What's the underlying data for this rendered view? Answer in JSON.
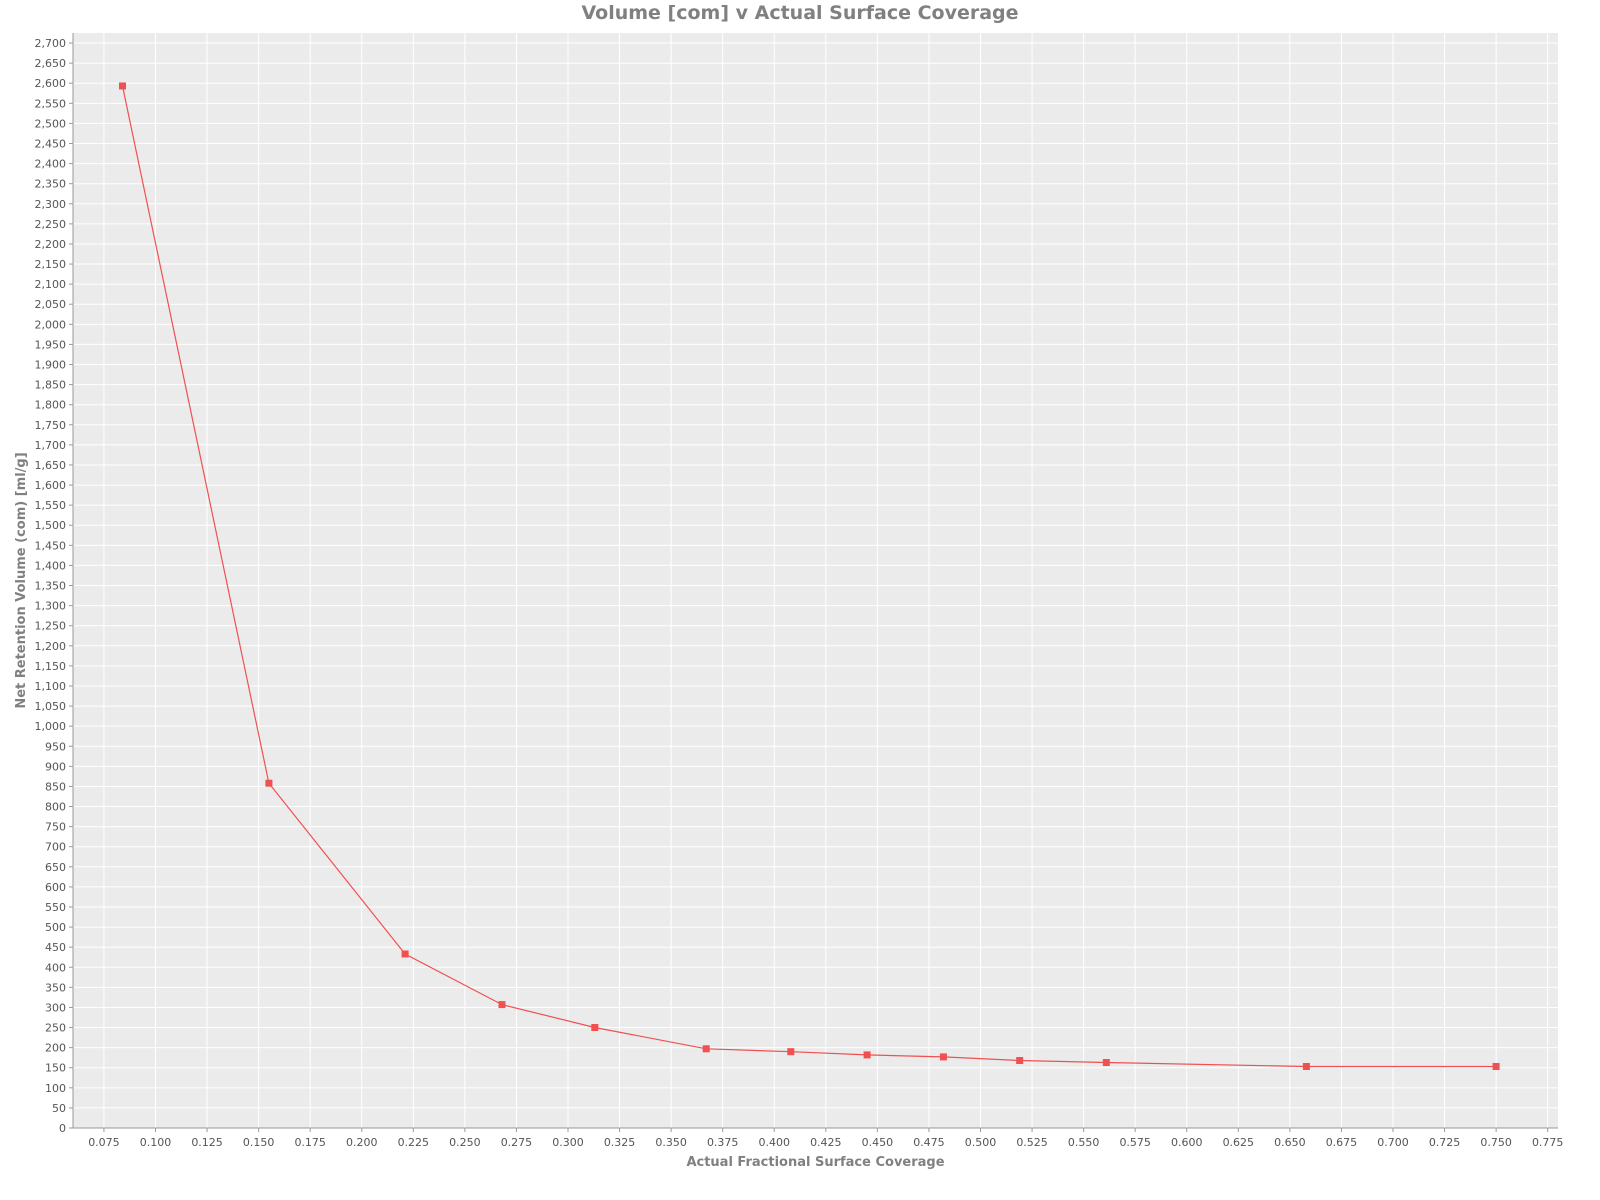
{
  "chart_data": {
    "type": "line",
    "title": "Volume [com] v Actual Surface Coverage",
    "xlabel": "Actual Fractional Surface Coverage",
    "ylabel": "Net Retention Volume (com) [ml/g]",
    "xlim": [
      0.06,
      0.78
    ],
    "ylim": [
      0,
      2725
    ],
    "x_ticks": [
      "0.075",
      "0.100",
      "0.125",
      "0.150",
      "0.175",
      "0.200",
      "0.225",
      "0.250",
      "0.275",
      "0.300",
      "0.325",
      "0.350",
      "0.375",
      "0.400",
      "0.425",
      "0.450",
      "0.475",
      "0.500",
      "0.525",
      "0.550",
      "0.575",
      "0.600",
      "0.625",
      "0.650",
      "0.675",
      "0.700",
      "0.725",
      "0.750",
      "0.775"
    ],
    "y_ticks": [
      "0",
      "50",
      "100",
      "150",
      "200",
      "250",
      "300",
      "350",
      "400",
      "450",
      "500",
      "550",
      "600",
      "650",
      "700",
      "750",
      "800",
      "850",
      "900",
      "950",
      "1,000",
      "1,050",
      "1,100",
      "1,150",
      "1,200",
      "1,250",
      "1,300",
      "1,350",
      "1,400",
      "1,450",
      "1,500",
      "1,550",
      "1,600",
      "1,650",
      "1,700",
      "1,750",
      "1,800",
      "1,850",
      "1,900",
      "1,950",
      "2,000",
      "2,050",
      "2,100",
      "2,150",
      "2,200",
      "2,250",
      "2,300",
      "2,350",
      "2,400",
      "2,450",
      "2,500",
      "2,550",
      "2,600",
      "2,650",
      "2,700"
    ],
    "grid": true,
    "background": "#ebebeb",
    "grid_color": "#ffffff",
    "series": [
      {
        "color": "#f05050",
        "marker": "square",
        "x": [
          0.084,
          0.155,
          0.221,
          0.268,
          0.313,
          0.367,
          0.408,
          0.445,
          0.482,
          0.519,
          0.561,
          0.658,
          0.75
        ],
        "y": [
          2593,
          858,
          433,
          307,
          250,
          197,
          190,
          182,
          177,
          168,
          163,
          153,
          153
        ]
      }
    ]
  }
}
